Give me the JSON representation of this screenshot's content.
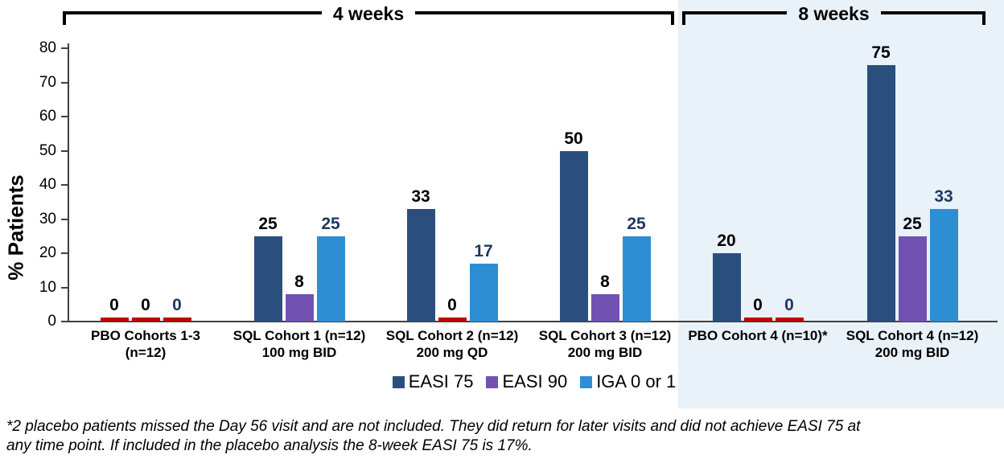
{
  "brackets": {
    "four_weeks": "4 weeks",
    "eight_weeks": "8 weeks"
  },
  "chart_data": {
    "type": "bar",
    "title": "",
    "ylabel": "% Patients",
    "ylim": [
      0,
      80
    ],
    "yticks": [
      0,
      10,
      20,
      30,
      40,
      50,
      60,
      70,
      80
    ],
    "grid": false,
    "legend_position": "bottom",
    "categories": [
      {
        "line1": "PBO Cohorts 1-3",
        "line2": "(n=12)",
        "period": "4 weeks"
      },
      {
        "line1": "SQL Cohort 1 (n=12)",
        "line2": "100 mg BID",
        "period": "4 weeks"
      },
      {
        "line1": "SQL Cohort 2 (n=12)",
        "line2": "200 mg QD",
        "period": "4 weeks"
      },
      {
        "line1": "SQL Cohort 3 (n=12)",
        "line2": "200 mg BID",
        "period": "4 weeks"
      },
      {
        "line1": "PBO Cohort 4 (n=10)*",
        "line2": "",
        "period": "8 weeks"
      },
      {
        "line1": "SQL Cohort 4 (n=12)",
        "line2": "200 mg BID",
        "period": "8 weeks"
      }
    ],
    "series": [
      {
        "name": "EASI 75",
        "color": "#2a4f7e",
        "label_color": "#000000",
        "values": [
          0,
          25,
          33,
          50,
          20,
          75
        ]
      },
      {
        "name": "EASI 90",
        "color": "#7152b3",
        "label_color": "#000000",
        "values": [
          0,
          8,
          0,
          8,
          0,
          25
        ]
      },
      {
        "name": "IGA 0 or 1",
        "color": "#2d8ed3",
        "label_color": "#1f3864",
        "values": [
          0,
          25,
          17,
          25,
          0,
          33
        ]
      }
    ],
    "zero_bar_color": "#c00000",
    "highlight_panel_color": "#e9f1f9",
    "axis_color": "#404040"
  },
  "footnote": "*2 placebo patients missed the Day 56 visit and are not included. They did return for later visits and did not achieve EASI 75 at any time point. If included in the placebo analysis the 8-week EASI 75 is 17%."
}
